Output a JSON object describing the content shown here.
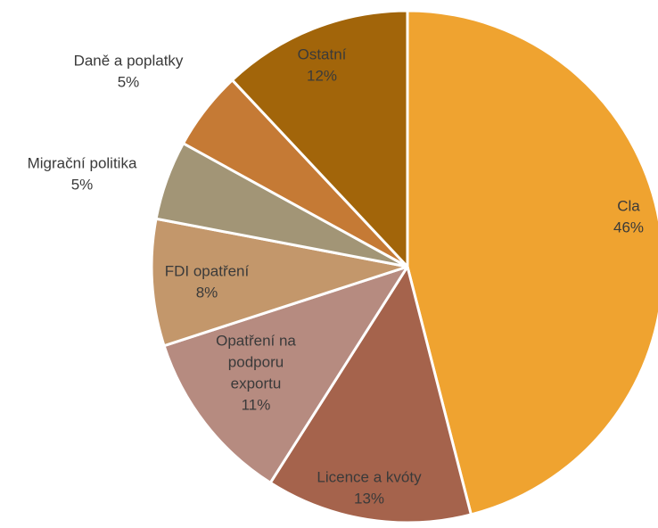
{
  "chart_data": {
    "type": "pie",
    "categories": [
      "Cla",
      "Licence a kvóty",
      "Opatření na podporu exportu",
      "FDI opatření",
      "Migrační politika",
      "Daně a poplatky",
      "Ostatní"
    ],
    "values": [
      46,
      13,
      11,
      8,
      5,
      5,
      12
    ],
    "labels": [
      "46%",
      "13%",
      "11%",
      "8%",
      "5%",
      "5%",
      "12%"
    ],
    "label_lines": [
      [
        "Cla"
      ],
      [
        "Licence a kvóty"
      ],
      [
        "Opatření na",
        "podporu",
        "exportu"
      ],
      [
        "FDI opatření"
      ],
      [
        "Migrační politika"
      ],
      [
        "Daně a poplatky"
      ],
      [
        "Ostatní"
      ]
    ],
    "colors": [
      "#EFA330",
      "#A5634C",
      "#B68B80",
      "#C3976B",
      "#A29576",
      "#C57A35",
      "#A2650A"
    ],
    "start_angle_deg": 0,
    "direction": "clockwise",
    "legend": "none",
    "title": ""
  }
}
